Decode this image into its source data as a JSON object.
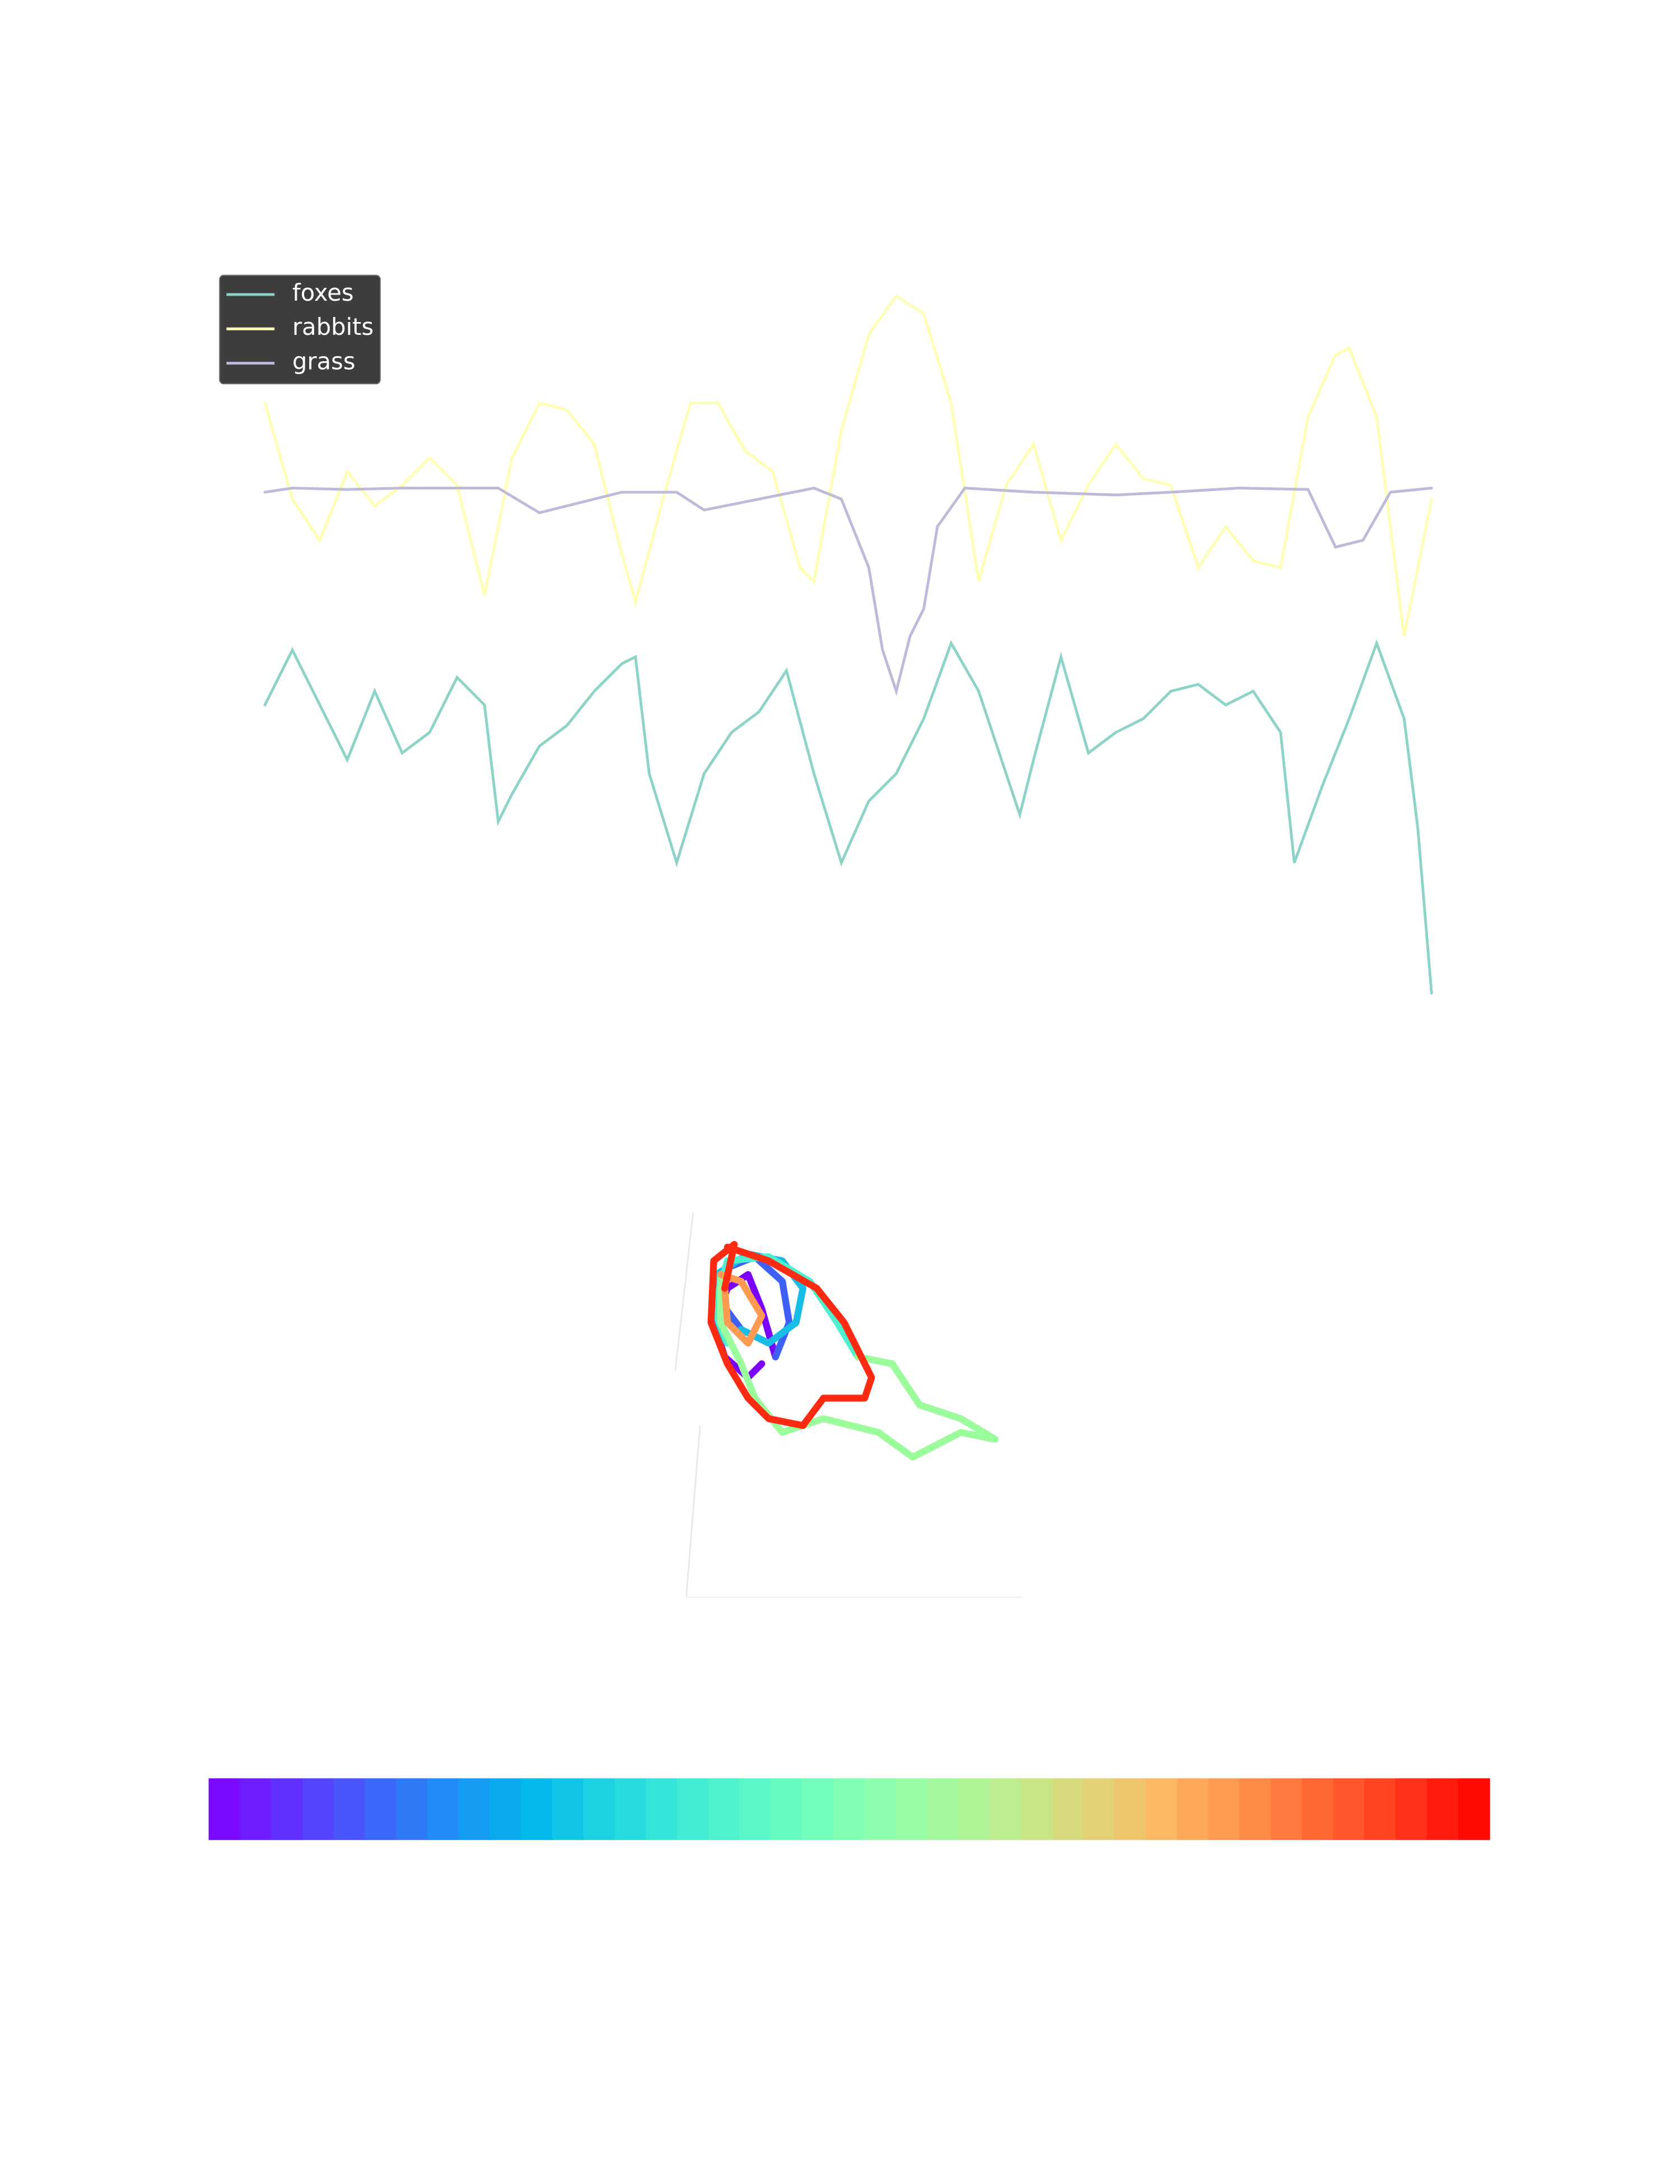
{
  "chart_data": [
    {
      "type": "line",
      "legend": "upper left",
      "series": [
        {
          "name": "foxes",
          "color": "#8dd3c7",
          "x": [
            0,
            20,
            40,
            60,
            80,
            100,
            120,
            140,
            160,
            170,
            180,
            200,
            220,
            240,
            260,
            270,
            280,
            300,
            320,
            340,
            360,
            380,
            400,
            420,
            440,
            460,
            480,
            500,
            520,
            540,
            550,
            560,
            580,
            600,
            620,
            640,
            660,
            680,
            700,
            720,
            740,
            750,
            770,
            790,
            810,
            830,
            840,
            850
          ],
          "values": [
            240,
            280,
            240,
            200,
            250,
            205,
            220,
            260,
            240,
            155,
            175,
            210,
            225,
            250,
            270,
            275,
            190,
            125,
            190,
            220,
            235,
            265,
            190,
            125,
            170,
            190,
            230,
            285,
            250,
            190,
            160,
            200,
            275,
            205,
            220,
            230,
            250,
            255,
            240,
            250,
            220,
            125,
            180,
            230,
            285,
            230,
            150,
            30
          ]
        },
        {
          "name": "rabbits",
          "color": "#ffffb3",
          "x": [
            0,
            20,
            40,
            60,
            80,
            100,
            120,
            140,
            160,
            180,
            200,
            220,
            240,
            260,
            270,
            290,
            310,
            330,
            350,
            370,
            390,
            400,
            420,
            440,
            460,
            480,
            500,
            520,
            540,
            560,
            580,
            600,
            620,
            640,
            660,
            680,
            700,
            720,
            740,
            760,
            780,
            790,
            810,
            830,
            850
          ],
          "values": [
            460,
            390,
            360,
            410,
            385,
            400,
            420,
            400,
            320,
            420,
            460,
            455,
            430,
            350,
            315,
            390,
            460,
            460,
            425,
            410,
            340,
            330,
            440,
            510,
            538,
            525,
            460,
            330,
            400,
            430,
            360,
            400,
            430,
            405,
            400,
            340,
            370,
            345,
            340,
            450,
            495,
            500,
            450,
            290,
            390
          ]
        },
        {
          "name": "grass",
          "color": "#bebada",
          "x": [
            0,
            20,
            60,
            100,
            140,
            170,
            200,
            220,
            260,
            300,
            320,
            360,
            400,
            420,
            440,
            450,
            460,
            470,
            480,
            490,
            510,
            560,
            620,
            660,
            710,
            760,
            780,
            800,
            820,
            850
          ],
          "values": [
            395,
            398,
            397,
            398,
            398,
            398,
            380,
            385,
            395,
            395,
            382,
            390,
            398,
            390,
            340,
            280,
            250,
            290,
            310,
            370,
            398,
            395,
            393,
            395,
            398,
            397,
            355,
            360,
            395,
            398
          ]
        }
      ],
      "xlim": [
        0,
        850
      ],
      "ylim": [
        0,
        560
      ]
    },
    {
      "type": "line",
      "series": [
        {
          "color": "#7a00ff",
          "x": [
            65,
            55,
            38,
            30,
            40,
            55,
            65,
            75
          ],
          "values": [
            170,
            160,
            175,
            200,
            225,
            235,
            210,
            175
          ]
        },
        {
          "color": "#3f60f7",
          "x": [
            75,
            85,
            80,
            60,
            40,
            35,
            50
          ],
          "values": [
            175,
            200,
            230,
            248,
            240,
            215,
            195
          ]
        },
        {
          "color": "#18bde6",
          "x": [
            50,
            70,
            90,
            95,
            80,
            55,
            32,
            28,
            40
          ],
          "values": [
            195,
            185,
            200,
            225,
            245,
            250,
            235,
            200,
            185
          ]
        },
        {
          "color": "#4ff0d0",
          "x": [
            40,
            30,
            40,
            70,
            100,
            120,
            135
          ],
          "values": [
            185,
            210,
            245,
            248,
            230,
            200,
            175
          ]
        },
        {
          "color": "#9afc9a",
          "x": [
            135,
            160,
            180,
            210,
            235,
            210,
            175,
            150,
            110,
            80,
            60,
            50,
            35,
            35
          ],
          "values": [
            175,
            170,
            140,
            130,
            115,
            120,
            102,
            120,
            130,
            120,
            145,
            170,
            200,
            235
          ]
        },
        {
          "color": "#ff9b50",
          "x": [
            35,
            50,
            65,
            55,
            40,
            38
          ],
          "values": [
            235,
            230,
            205,
            185,
            200,
            225
          ]
        },
        {
          "color": "#ff2a12",
          "x": [
            38,
            45,
            30,
            28,
            40,
            55,
            70,
            95,
            110,
            140,
            145,
            125,
            105,
            70,
            40
          ],
          "values": [
            225,
            257,
            245,
            200,
            170,
            145,
            130,
            125,
            145,
            145,
            160,
            200,
            225,
            245,
            255
          ]
        }
      ],
      "xlim": [
        0,
        260
      ],
      "ylim": [
        0,
        280
      ]
    },
    {
      "type": "colorbar",
      "cmap": "rainbow"
    }
  ]
}
